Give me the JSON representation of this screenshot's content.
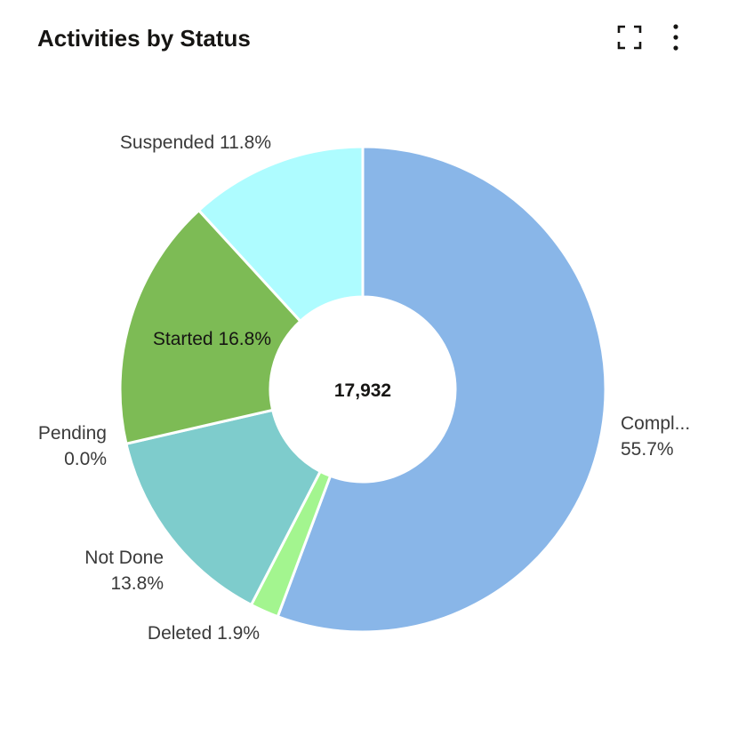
{
  "header": {
    "title": "Activities by Status",
    "fullscreen_icon": "fullscreen-icon",
    "more_icon": "more-vertical-icon"
  },
  "chart_data": {
    "type": "pie",
    "donut": true,
    "center_label": "17,932",
    "slices": [
      {
        "name": "Completed",
        "label": "Compl...",
        "percent_label": "55.7%",
        "value": 55.7,
        "color": "#89B6E8"
      },
      {
        "name": "Deleted",
        "label": "Deleted",
        "percent_label": "1.9%",
        "value": 1.9,
        "color": "#A3F58F"
      },
      {
        "name": "Not Done",
        "label": "Not Done",
        "percent_label": "13.8%",
        "value": 13.8,
        "color": "#7ECCCC"
      },
      {
        "name": "Pending",
        "label": "Pending",
        "percent_label": "0.0%",
        "value": 0.0,
        "color": "#B5A9E6"
      },
      {
        "name": "Started",
        "label": "Started",
        "percent_label": "16.8%",
        "value": 16.8,
        "color": "#7DBB55"
      },
      {
        "name": "Suspended",
        "label": "Suspended",
        "percent_label": "11.8%",
        "value": 11.8,
        "color": "#AEFCFF"
      }
    ]
  }
}
